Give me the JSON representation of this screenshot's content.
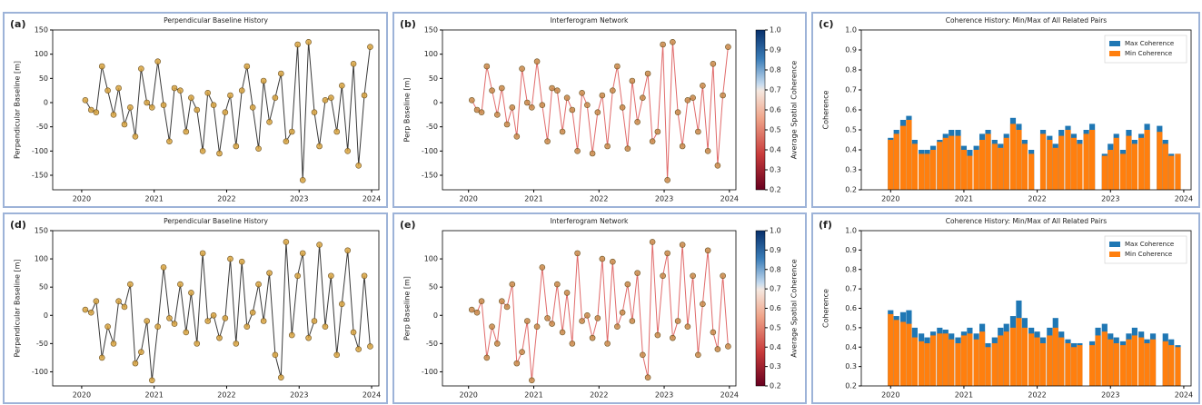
{
  "chart_data": [
    {
      "type": "line",
      "label": "(a)",
      "title": "Perpendicular Baseline History",
      "ylabel": "Perpendicular Baseline [m]",
      "x": [
        2020.05,
        2020.13,
        2020.2,
        2020.28,
        2020.36,
        2020.44,
        2020.51,
        2020.59,
        2020.67,
        2020.74,
        2020.82,
        2020.9,
        2020.97,
        2021.05,
        2021.13,
        2021.21,
        2021.28,
        2021.36,
        2021.44,
        2021.51,
        2021.59,
        2021.67,
        2021.74,
        2021.82,
        2021.9,
        2021.98,
        2022.05,
        2022.13,
        2022.21,
        2022.28,
        2022.36,
        2022.44,
        2022.51,
        2022.59,
        2022.67,
        2022.75,
        2022.82,
        2022.9,
        2022.98,
        2023.05,
        2023.13,
        2023.21,
        2023.28,
        2023.36,
        2023.44,
        2023.52,
        2023.59,
        2023.67,
        2023.75,
        2023.82,
        2023.9,
        2023.98
      ],
      "values": [
        5,
        -15,
        -20,
        75,
        25,
        -25,
        30,
        -45,
        -10,
        -70,
        70,
        0,
        -10,
        85,
        -5,
        -80,
        30,
        25,
        -60,
        10,
        -15,
        -100,
        20,
        -5,
        -105,
        -20,
        15,
        -90,
        25,
        75,
        -10,
        -95,
        45,
        -40,
        10,
        60,
        -80,
        -60,
        120,
        -160,
        125,
        -20,
        -90,
        5,
        10,
        -60,
        35,
        -100,
        80,
        -130,
        15,
        115
      ],
      "line_color": "#3a3a3a",
      "marker_color": "#d9a441",
      "xlim": [
        2019.6,
        2024.1
      ],
      "xticks": [
        2020,
        2021,
        2022,
        2023,
        2024
      ],
      "ylim": [
        -180,
        150
      ],
      "yticks": [
        -150,
        -100,
        -50,
        0,
        50,
        100,
        150
      ]
    },
    {
      "type": "network",
      "label": "(b)",
      "title": "Interferogram Network",
      "ylabel": "Perp Baseline [m]",
      "x": [
        2020.05,
        2020.13,
        2020.2,
        2020.28,
        2020.36,
        2020.44,
        2020.51,
        2020.59,
        2020.67,
        2020.74,
        2020.82,
        2020.9,
        2020.97,
        2021.05,
        2021.13,
        2021.21,
        2021.28,
        2021.36,
        2021.44,
        2021.51,
        2021.59,
        2021.67,
        2021.74,
        2021.82,
        2021.9,
        2021.98,
        2022.05,
        2022.13,
        2022.21,
        2022.28,
        2022.36,
        2022.44,
        2022.51,
        2022.59,
        2022.67,
        2022.75,
        2022.82,
        2022.9,
        2022.98,
        2023.05,
        2023.13,
        2023.21,
        2023.28,
        2023.36,
        2023.44,
        2023.52,
        2023.59,
        2023.67,
        2023.75,
        2023.82,
        2023.9,
        2023.98
      ],
      "values": [
        5,
        -15,
        -20,
        75,
        25,
        -25,
        30,
        -45,
        -10,
        -70,
        70,
        0,
        -10,
        85,
        -5,
        -80,
        30,
        25,
        -60,
        10,
        -15,
        -100,
        20,
        -5,
        -105,
        -20,
        15,
        -90,
        25,
        75,
        -10,
        -95,
        45,
        -40,
        10,
        60,
        -80,
        -60,
        120,
        -160,
        125,
        -20,
        -90,
        5,
        10,
        -60,
        35,
        -100,
        80,
        -130,
        15,
        115
      ],
      "line_color": "#e06a6a",
      "marker_color": "#c98a4a",
      "xlim": [
        2019.6,
        2024.1
      ],
      "xticks": [
        2020,
        2021,
        2022,
        2023,
        2024
      ],
      "ylim": [
        -180,
        150
      ],
      "yticks": [
        -150,
        -100,
        -50,
        0,
        50,
        100,
        150
      ],
      "colorbar": {
        "label": "Average Spatial Coherence",
        "lim": [
          0.2,
          1.0
        ],
        "ticks": [
          0.2,
          0.3,
          0.4,
          0.5,
          0.6,
          0.7,
          0.8,
          0.9,
          {
            "value": 1.0,
            "label": "1.0"
          }
        ]
      }
    },
    {
      "type": "bar",
      "label": "(c)",
      "title": "Coherence History: Min/Max of All Related Pairs",
      "ylabel": "Coherence",
      "x": [
        2020.0,
        2020.08,
        2020.17,
        2020.25,
        2020.33,
        2020.42,
        2020.5,
        2020.58,
        2020.67,
        2020.75,
        2020.83,
        2020.92,
        2021.0,
        2021.08,
        2021.17,
        2021.25,
        2021.33,
        2021.42,
        2021.5,
        2021.58,
        2021.67,
        2021.75,
        2021.83,
        2021.92,
        2022.0,
        2022.08,
        2022.17,
        2022.25,
        2022.33,
        2022.42,
        2022.5,
        2022.58,
        2022.67,
        2022.75,
        2022.83,
        2022.92,
        2023.0,
        2023.08,
        2023.17,
        2023.25,
        2023.33,
        2023.42,
        2023.5,
        2023.58,
        2023.67,
        2023.75,
        2023.83,
        2023.92
      ],
      "series": [
        {
          "name": "Max Coherence",
          "color": "#1f77b4",
          "values": [
            0.46,
            0.5,
            0.55,
            0.57,
            0.45,
            0.4,
            0.4,
            0.42,
            0.45,
            0.48,
            0.5,
            0.5,
            0.42,
            0.4,
            0.42,
            0.48,
            0.5,
            0.45,
            0.43,
            0.48,
            0.56,
            0.53,
            0.45,
            0.4,
            null,
            0.5,
            0.47,
            0.43,
            0.5,
            0.52,
            0.48,
            0.45,
            0.5,
            0.53,
            null,
            0.38,
            0.43,
            0.48,
            0.4,
            0.5,
            0.45,
            0.48,
            0.53,
            null,
            0.52,
            0.45,
            0.38,
            0.38
          ]
        },
        {
          "name": "Min Coherence",
          "color": "#ff7f0e",
          "values": [
            0.45,
            0.48,
            0.52,
            0.55,
            0.43,
            0.38,
            0.38,
            0.4,
            0.44,
            0.46,
            0.47,
            0.47,
            0.4,
            0.37,
            0.4,
            0.45,
            0.48,
            0.43,
            0.41,
            0.46,
            0.53,
            0.5,
            0.43,
            0.38,
            null,
            0.48,
            0.45,
            0.41,
            0.47,
            0.5,
            0.46,
            0.43,
            0.48,
            0.5,
            null,
            0.37,
            0.4,
            0.46,
            0.38,
            0.47,
            0.43,
            0.46,
            0.5,
            null,
            0.49,
            0.43,
            0.37,
            0.38
          ]
        }
      ],
      "legend": "upper right",
      "xlim": [
        2019.6,
        2024.1
      ],
      "xticks": [
        2020,
        2021,
        2022,
        2023,
        2024
      ],
      "ylim": [
        0.2,
        1.0
      ],
      "yticks": [
        0.2,
        0.3,
        0.4,
        0.5,
        0.6,
        0.7,
        0.8,
        0.9,
        {
          "value": 1.0,
          "label": "1.0"
        }
      ]
    },
    {
      "type": "line",
      "label": "(d)",
      "title": "Perpendicular Baseline History",
      "ylabel": "Perpendicular Baseline [m]",
      "x": [
        2020.05,
        2020.13,
        2020.2,
        2020.28,
        2020.36,
        2020.44,
        2020.51,
        2020.59,
        2020.67,
        2020.74,
        2020.82,
        2020.9,
        2020.97,
        2021.05,
        2021.13,
        2021.21,
        2021.28,
        2021.36,
        2021.44,
        2021.51,
        2021.59,
        2021.67,
        2021.74,
        2021.82,
        2021.9,
        2021.98,
        2022.05,
        2022.13,
        2022.21,
        2022.28,
        2022.36,
        2022.44,
        2022.51,
        2022.59,
        2022.67,
        2022.75,
        2022.82,
        2022.9,
        2022.98,
        2023.05,
        2023.13,
        2023.21,
        2023.28,
        2023.36,
        2023.44,
        2023.52,
        2023.59,
        2023.67,
        2023.75,
        2023.82,
        2023.9,
        2023.98
      ],
      "values": [
        10,
        5,
        25,
        -75,
        -20,
        -50,
        25,
        15,
        55,
        -85,
        -65,
        -10,
        -115,
        -20,
        85,
        -5,
        -15,
        55,
        -30,
        40,
        -50,
        110,
        -10,
        0,
        -40,
        -5,
        100,
        -50,
        95,
        -20,
        5,
        55,
        -10,
        75,
        -70,
        -110,
        130,
        -35,
        70,
        110,
        -40,
        -10,
        125,
        -20,
        70,
        -70,
        20,
        115,
        -30,
        -60,
        70,
        -55
      ],
      "line_color": "#3a3a3a",
      "marker_color": "#d9a441",
      "xlim": [
        2019.6,
        2024.1
      ],
      "xticks": [
        2020,
        2021,
        2022,
        2023,
        2024
      ],
      "ylim": [
        -125,
        150
      ],
      "yticks": [
        -100,
        -50,
        0,
        50,
        100,
        150
      ]
    },
    {
      "type": "network",
      "label": "(e)",
      "title": "Interferogram Network",
      "ylabel": "Perp Baseline [m]",
      "x": [
        2020.05,
        2020.13,
        2020.2,
        2020.28,
        2020.36,
        2020.44,
        2020.51,
        2020.59,
        2020.67,
        2020.74,
        2020.82,
        2020.9,
        2020.97,
        2021.05,
        2021.13,
        2021.21,
        2021.28,
        2021.36,
        2021.44,
        2021.51,
        2021.59,
        2021.67,
        2021.74,
        2021.82,
        2021.9,
        2021.98,
        2022.05,
        2022.13,
        2022.21,
        2022.28,
        2022.36,
        2022.44,
        2022.51,
        2022.59,
        2022.67,
        2022.75,
        2022.82,
        2022.9,
        2022.98,
        2023.05,
        2023.13,
        2023.21,
        2023.28,
        2023.36,
        2023.44,
        2023.52,
        2023.59,
        2023.67,
        2023.75,
        2023.82,
        2023.9,
        2023.98
      ],
      "values": [
        10,
        5,
        25,
        -75,
        -20,
        -50,
        25,
        15,
        55,
        -85,
        -65,
        -10,
        -115,
        -20,
        85,
        -5,
        -15,
        55,
        -30,
        40,
        -50,
        110,
        -10,
        0,
        -40,
        -5,
        100,
        -50,
        95,
        -20,
        5,
        55,
        -10,
        75,
        -70,
        -110,
        130,
        -35,
        70,
        110,
        -40,
        -10,
        125,
        -20,
        70,
        -70,
        20,
        115,
        -30,
        -60,
        70,
        -55
      ],
      "line_color": "#e06a6a",
      "marker_color": "#c98a4a",
      "xlim": [
        2019.6,
        2024.1
      ],
      "xticks": [
        2020,
        2021,
        2022,
        2023,
        2024
      ],
      "ylim": [
        -125,
        150
      ],
      "yticks": [
        -100,
        -50,
        0,
        50,
        100
      ],
      "colorbar": {
        "label": "Average Spatial Coherence",
        "lim": [
          0.2,
          1.0
        ],
        "ticks": [
          0.2,
          0.3,
          0.4,
          0.5,
          0.6,
          0.7,
          0.8,
          0.9,
          {
            "value": 1.0,
            "label": "1.0"
          }
        ]
      }
    },
    {
      "type": "bar",
      "label": "(f)",
      "title": "Coherence History: Min/Max of All Related Pairs",
      "ylabel": "Coherence",
      "x": [
        2020.0,
        2020.08,
        2020.17,
        2020.25,
        2020.33,
        2020.42,
        2020.5,
        2020.58,
        2020.67,
        2020.75,
        2020.83,
        2020.92,
        2021.0,
        2021.08,
        2021.17,
        2021.25,
        2021.33,
        2021.42,
        2021.5,
        2021.58,
        2021.67,
        2021.75,
        2021.83,
        2021.92,
        2022.0,
        2022.08,
        2022.17,
        2022.25,
        2022.33,
        2022.42,
        2022.5,
        2022.58,
        2022.67,
        2022.75,
        2022.83,
        2022.92,
        2023.0,
        2023.08,
        2023.17,
        2023.25,
        2023.33,
        2023.42,
        2023.5,
        2023.58,
        2023.67,
        2023.75,
        2023.83,
        2023.92
      ],
      "series": [
        {
          "name": "Max Coherence",
          "color": "#1f77b4",
          "values": [
            0.59,
            0.56,
            0.58,
            0.59,
            0.5,
            0.47,
            0.45,
            0.48,
            0.5,
            0.49,
            0.47,
            0.45,
            0.48,
            0.5,
            0.47,
            0.52,
            0.42,
            0.45,
            0.5,
            0.52,
            0.56,
            0.64,
            0.55,
            0.5,
            0.48,
            0.45,
            0.5,
            0.55,
            0.48,
            0.44,
            0.42,
            0.42,
            null,
            0.43,
            0.5,
            0.52,
            0.47,
            0.45,
            0.43,
            0.47,
            0.5,
            0.48,
            0.44,
            0.47,
            null,
            0.47,
            0.44,
            0.41
          ]
        },
        {
          "name": "Min Coherence",
          "color": "#ff7f0e",
          "values": [
            0.57,
            0.54,
            0.53,
            0.52,
            0.45,
            0.43,
            0.42,
            0.46,
            0.47,
            0.47,
            0.44,
            0.42,
            0.46,
            0.47,
            0.44,
            0.48,
            0.4,
            0.42,
            0.46,
            0.48,
            0.5,
            0.55,
            0.5,
            0.47,
            0.45,
            0.42,
            0.46,
            0.5,
            0.45,
            0.42,
            0.4,
            0.41,
            null,
            0.41,
            0.46,
            0.48,
            0.44,
            0.42,
            0.41,
            0.44,
            0.46,
            0.45,
            0.42,
            0.44,
            null,
            0.43,
            0.41,
            0.4
          ]
        }
      ],
      "legend": "upper right",
      "xlim": [
        2019.6,
        2024.1
      ],
      "xticks": [
        2020,
        2021,
        2022,
        2023,
        2024
      ],
      "ylim": [
        0.2,
        1.0
      ],
      "yticks": [
        0.2,
        0.3,
        0.4,
        0.5,
        0.6,
        0.7,
        0.8,
        0.9,
        {
          "value": 1.0,
          "label": "1.0"
        }
      ]
    }
  ]
}
